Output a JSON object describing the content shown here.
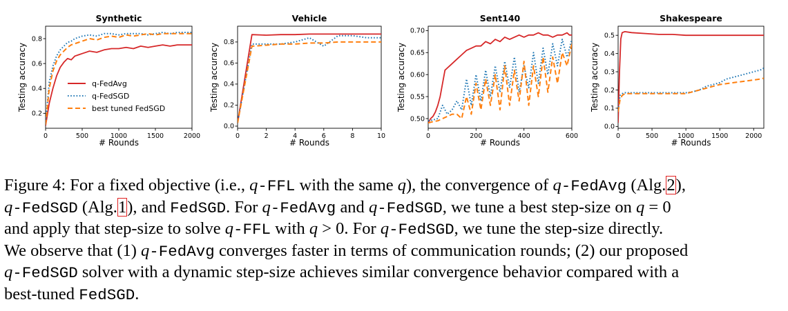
{
  "chart_data": [
    {
      "type": "line",
      "title": "Synthetic",
      "xlabel": "# Rounds",
      "ylabel": "Testing accuracy",
      "xlim": [
        0,
        2000
      ],
      "ylim": [
        0.08,
        0.9
      ],
      "xticks": [
        0,
        500,
        1000,
        1500,
        2000
      ],
      "yticks": [
        0.2,
        0.4,
        0.6,
        0.8
      ],
      "ytick_labels": [
        "0.2",
        "0.4",
        "0.6",
        "0.8"
      ],
      "legend": {
        "placement": "center-left",
        "entries": [
          "q-FedAvg",
          "q-FedSGD",
          "best tuned FedSGD"
        ]
      },
      "grid": false,
      "series": [
        {
          "name": "q-FedAvg",
          "color": "#d62728",
          "style": "solid",
          "x": [
            0,
            50,
            100,
            150,
            200,
            250,
            300,
            350,
            400,
            450,
            500,
            600,
            700,
            800,
            900,
            1000,
            1100,
            1200,
            1300,
            1400,
            1500,
            1600,
            1700,
            1800,
            1900,
            2000
          ],
          "y": [
            0.1,
            0.28,
            0.4,
            0.5,
            0.57,
            0.61,
            0.64,
            0.63,
            0.66,
            0.67,
            0.68,
            0.7,
            0.69,
            0.71,
            0.72,
            0.72,
            0.73,
            0.72,
            0.74,
            0.73,
            0.74,
            0.75,
            0.74,
            0.75,
            0.75,
            0.75
          ]
        },
        {
          "name": "q-FedSGD",
          "color": "#1f77b4",
          "style": "dotted",
          "x": [
            0,
            50,
            100,
            150,
            200,
            250,
            300,
            350,
            400,
            450,
            500,
            600,
            700,
            800,
            900,
            1000,
            1100,
            1200,
            1300,
            1400,
            1500,
            1600,
            1700,
            1800,
            1900,
            2000
          ],
          "y": [
            0.12,
            0.45,
            0.58,
            0.66,
            0.71,
            0.74,
            0.77,
            0.78,
            0.8,
            0.81,
            0.82,
            0.83,
            0.82,
            0.84,
            0.84,
            0.83,
            0.84,
            0.84,
            0.84,
            0.83,
            0.84,
            0.85,
            0.84,
            0.85,
            0.85,
            0.85
          ]
        },
        {
          "name": "best tuned FedSGD",
          "color": "#ff7f0e",
          "style": "dashed",
          "x": [
            0,
            50,
            100,
            150,
            200,
            250,
            300,
            350,
            400,
            450,
            500,
            600,
            700,
            800,
            900,
            1000,
            1100,
            1200,
            1300,
            1400,
            1500,
            1600,
            1700,
            1800,
            1900,
            2000
          ],
          "y": [
            0.11,
            0.4,
            0.54,
            0.62,
            0.67,
            0.7,
            0.73,
            0.75,
            0.76,
            0.77,
            0.78,
            0.8,
            0.79,
            0.81,
            0.82,
            0.81,
            0.83,
            0.82,
            0.83,
            0.84,
            0.83,
            0.84,
            0.84,
            0.84,
            0.84,
            0.84
          ]
        }
      ]
    },
    {
      "type": "line",
      "title": "Vehicle",
      "xlabel": "# Rounds",
      "ylabel": "Testing accuracy",
      "xlim": [
        0,
        10
      ],
      "ylim": [
        -0.02,
        0.95
      ],
      "xticks": [
        0,
        2,
        4,
        6,
        8,
        10
      ],
      "yticks": [
        0.0,
        0.2,
        0.4,
        0.6,
        0.8
      ],
      "ytick_labels": [
        "0.0",
        "0.2",
        "0.4",
        "0.6",
        "0.8"
      ],
      "grid": false,
      "series": [
        {
          "name": "q-FedAvg",
          "color": "#d62728",
          "style": "solid",
          "x": [
            0,
            1,
            2,
            3,
            4,
            5,
            6,
            7,
            8,
            9,
            10
          ],
          "y": [
            0.03,
            0.87,
            0.865,
            0.87,
            0.87,
            0.875,
            0.875,
            0.875,
            0.875,
            0.875,
            0.875
          ]
        },
        {
          "name": "q-FedSGD",
          "color": "#1f77b4",
          "style": "dotted",
          "x": [
            0,
            1,
            2,
            3,
            4,
            5,
            6,
            7,
            8,
            9,
            10
          ],
          "y": [
            0.03,
            0.78,
            0.78,
            0.78,
            0.8,
            0.84,
            0.76,
            0.86,
            0.86,
            0.84,
            0.84
          ]
        },
        {
          "name": "best tuned FedSGD",
          "color": "#ff7f0e",
          "style": "dashed",
          "x": [
            0,
            1,
            2,
            3,
            4,
            5,
            6,
            7,
            8,
            9,
            10
          ],
          "y": [
            0.03,
            0.76,
            0.77,
            0.78,
            0.78,
            0.79,
            0.79,
            0.8,
            0.8,
            0.8,
            0.8
          ]
        }
      ]
    },
    {
      "type": "line",
      "title": "Sent140",
      "xlabel": "# Rounds",
      "ylabel": "Testing accuracy",
      "xlim": [
        0,
        600
      ],
      "ylim": [
        0.478,
        0.71
      ],
      "xticks": [
        0,
        200,
        400,
        600
      ],
      "yticks": [
        0.5,
        0.55,
        0.6,
        0.65,
        0.7
      ],
      "ytick_labels": [
        "0.50",
        "0.55",
        "0.60",
        "0.65",
        "0.70"
      ],
      "grid": false,
      "series": [
        {
          "name": "q-FedAvg",
          "color": "#d62728",
          "style": "solid",
          "x": [
            0,
            10,
            20,
            30,
            40,
            50,
            60,
            70,
            80,
            90,
            100,
            120,
            140,
            160,
            180,
            200,
            220,
            240,
            260,
            280,
            300,
            320,
            340,
            360,
            380,
            400,
            420,
            440,
            460,
            480,
            500,
            520,
            540,
            560,
            580,
            590,
            600
          ],
          "y": [
            0.49,
            0.5,
            0.505,
            0.515,
            0.53,
            0.55,
            0.58,
            0.61,
            0.615,
            0.62,
            0.625,
            0.635,
            0.645,
            0.655,
            0.66,
            0.665,
            0.665,
            0.675,
            0.67,
            0.68,
            0.675,
            0.685,
            0.68,
            0.685,
            0.69,
            0.685,
            0.69,
            0.69,
            0.695,
            0.69,
            0.69,
            0.685,
            0.69,
            0.69,
            0.695,
            0.69,
            0.69
          ]
        },
        {
          "name": "q-FedSGD",
          "color": "#1f77b4",
          "style": "dotted",
          "x": [
            0,
            20,
            40,
            60,
            80,
            100,
            120,
            140,
            160,
            180,
            200,
            220,
            240,
            260,
            280,
            300,
            320,
            340,
            360,
            380,
            400,
            420,
            440,
            460,
            480,
            500,
            520,
            540,
            560,
            580,
            600
          ],
          "y": [
            0.495,
            0.497,
            0.5,
            0.53,
            0.51,
            0.52,
            0.54,
            0.52,
            0.59,
            0.53,
            0.6,
            0.54,
            0.61,
            0.55,
            0.62,
            0.56,
            0.63,
            0.57,
            0.64,
            0.56,
            0.62,
            0.57,
            0.65,
            0.58,
            0.66,
            0.6,
            0.67,
            0.62,
            0.68,
            0.64,
            0.68
          ]
        },
        {
          "name": "best tuned FedSGD",
          "color": "#ff7f0e",
          "style": "dashed",
          "x": [
            0,
            20,
            40,
            60,
            80,
            100,
            120,
            140,
            160,
            180,
            200,
            220,
            240,
            260,
            280,
            300,
            320,
            340,
            360,
            380,
            400,
            420,
            440,
            460,
            480,
            500,
            520,
            540,
            560,
            580,
            600
          ],
          "y": [
            0.49,
            0.493,
            0.495,
            0.5,
            0.505,
            0.51,
            0.51,
            0.5,
            0.55,
            0.51,
            0.58,
            0.52,
            0.59,
            0.53,
            0.6,
            0.52,
            0.62,
            0.53,
            0.61,
            0.54,
            0.63,
            0.53,
            0.62,
            0.55,
            0.64,
            0.56,
            0.64,
            0.58,
            0.65,
            0.62,
            0.67
          ]
        }
      ]
    },
    {
      "type": "line",
      "title": "Shakespeare",
      "xlabel": "# Rounds",
      "ylabel": "Testing accuracy",
      "xlim": [
        0,
        2150
      ],
      "ylim": [
        -0.01,
        0.55
      ],
      "xticks": [
        0,
        500,
        1000,
        1500,
        2000
      ],
      "yticks": [
        0.0,
        0.1,
        0.2,
        0.3,
        0.4,
        0.5
      ],
      "ytick_labels": [
        "0.0",
        "0.1",
        "0.2",
        "0.3",
        "0.4",
        "0.5"
      ],
      "grid": false,
      "series": [
        {
          "name": "q-FedAvg",
          "color": "#d62728",
          "style": "solid",
          "x": [
            0,
            20,
            40,
            60,
            100,
            200,
            400,
            600,
            800,
            1000,
            1200,
            1400,
            1600,
            1800,
            2000,
            2150
          ],
          "y": [
            0.02,
            0.3,
            0.48,
            0.515,
            0.52,
            0.515,
            0.51,
            0.505,
            0.505,
            0.5,
            0.5,
            0.5,
            0.5,
            0.5,
            0.5,
            0.5
          ]
        },
        {
          "name": "q-FedSGD",
          "color": "#1f77b4",
          "style": "dotted",
          "x": [
            0,
            30,
            60,
            100,
            200,
            400,
            600,
            800,
            1000,
            1100,
            1200,
            1300,
            1400,
            1500,
            1600,
            1700,
            1800,
            1900,
            2000,
            2100,
            2150
          ],
          "y": [
            0.09,
            0.17,
            0.18,
            0.185,
            0.185,
            0.185,
            0.185,
            0.185,
            0.185,
            0.19,
            0.2,
            0.22,
            0.23,
            0.24,
            0.26,
            0.27,
            0.28,
            0.29,
            0.3,
            0.31,
            0.32
          ]
        },
        {
          "name": "best tuned FedSGD",
          "color": "#ff7f0e",
          "style": "dashed",
          "x": [
            0,
            30,
            60,
            100,
            200,
            400,
            600,
            800,
            1000,
            1100,
            1200,
            1300,
            1400,
            1500,
            1600,
            1700,
            1800,
            1900,
            2000,
            2100,
            2150
          ],
          "y": [
            0.08,
            0.15,
            0.17,
            0.18,
            0.18,
            0.18,
            0.18,
            0.18,
            0.18,
            0.19,
            0.2,
            0.21,
            0.22,
            0.23,
            0.235,
            0.24,
            0.245,
            0.25,
            0.255,
            0.26,
            0.265
          ]
        }
      ]
    }
  ],
  "caption": {
    "line1": {
      "a": "Figure 4: For a fixed objective (i.e., ",
      "b": "q",
      "c": "-FFL",
      "d": " with the same ",
      "e": "q",
      "f": "), the convergence of ",
      "g": "q",
      "h": "-FedAvg",
      "i": " (Alg.",
      "j": "2",
      "k": "),"
    },
    "line2": {
      "a": "q",
      "b": "-FedSGD",
      "c": " (Alg.",
      "d": "1",
      "e": "), and ",
      "f": "FedSGD",
      "g": ". For ",
      "h": "q",
      "i": "-FedAvg",
      "j": " and ",
      "k": "q",
      "l": "-FedSGD",
      "m": ", we tune a best step-size on ",
      "n": "q",
      "o": " = 0"
    },
    "line3": {
      "a": "and apply that step-size to solve ",
      "b": "q",
      "c": "-FFL",
      "d": " with ",
      "e": "q",
      "f": " > 0. For ",
      "g": "q",
      "h": "-FedSGD",
      "i": ", we tune the step-size directly."
    },
    "line4": {
      "a": "We observe that (1) ",
      "b": "q",
      "c": "-FedAvg",
      "d": " converges faster in terms of communication rounds; (2) our proposed"
    },
    "line5": {
      "a": "q",
      "b": "-FedSGD",
      "c": " solver with a dynamic step-size achieves similar convergence behavior compared with a"
    },
    "line6": {
      "a": "best-tuned ",
      "b": "FedSGD",
      "c": "."
    }
  }
}
